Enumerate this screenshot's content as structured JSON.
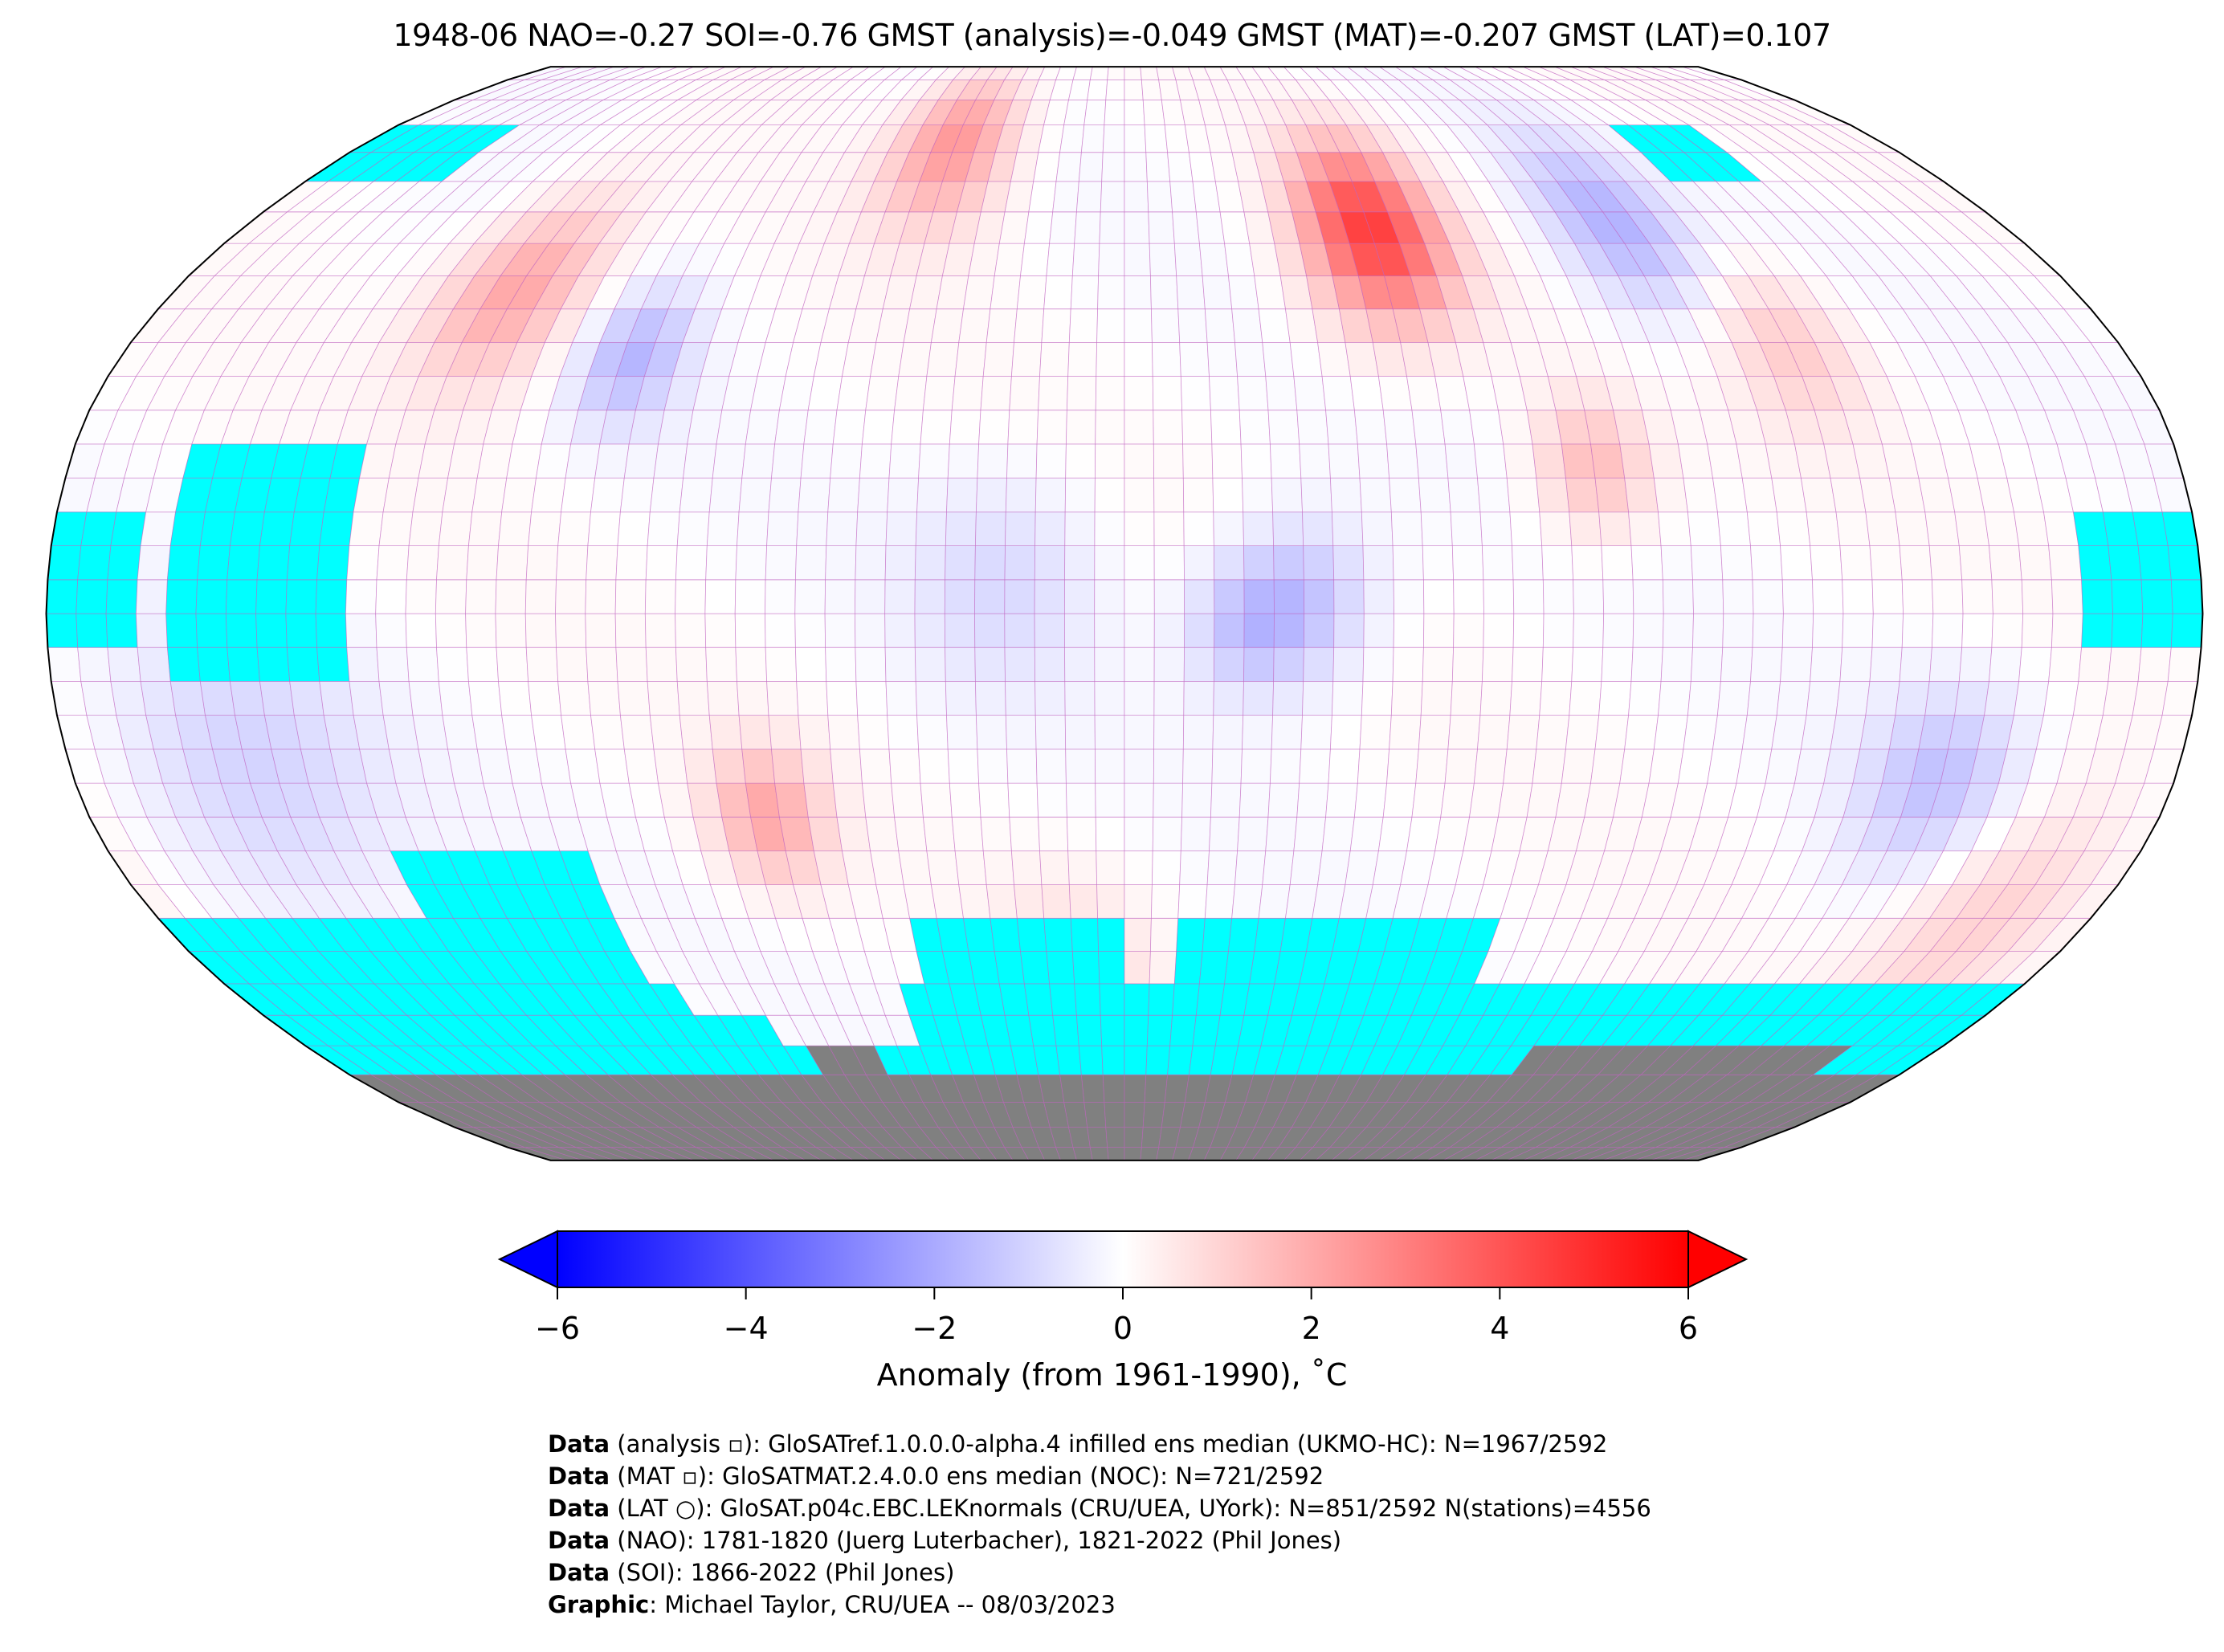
{
  "title": "1948-06 NAO=-0.27 SOI=-0.76 GMST (analysis)=-0.049 GMST (MAT)=-0.207 GMST (LAT)=0.107",
  "colors": {
    "missing": "#00ffff",
    "land_ice": "#808080",
    "grid": "#c060c0",
    "low": "#0000ff",
    "mid": "#ffffff",
    "high": "#ff0000"
  },
  "chart_data": {
    "type": "heatmap",
    "projection": "Robinson",
    "grid_resolution_deg": 5,
    "colorbar": {
      "min": -6,
      "max": 6,
      "extend": "both",
      "colormap": "bwr",
      "ticks": [
        -6,
        -4,
        -2,
        0,
        2,
        4,
        6
      ],
      "tick_labels": [
        "−6",
        "−4",
        "−2",
        "0",
        "2",
        "4",
        "6"
      ],
      "label": "Anomaly (from 1961-1990), ˚C"
    }
  },
  "footer": [
    {
      "bold": "Data",
      "text": " (analysis ▫): GloSATref.1.0.0.0-alpha.4 infilled ens median (UKMO-HC): N=1967/2592"
    },
    {
      "bold": "Data",
      "text": " (MAT ▫): GloSATMAT.2.4.0.0 ens median (NOC): N=721/2592"
    },
    {
      "bold": "Data",
      "text": " (LAT ○): GloSAT.p04c.EBC.LEKnormals (CRU/UEA, UYork): N=851/2592 N(stations)=4556"
    },
    {
      "bold": "Data",
      "text": " (NAO): 1781-1820 (Juerg Luterbacher), 1821-2022 (Phil Jones)"
    },
    {
      "bold": "Data",
      "text": " (SOI): 1866-2022 (Phil Jones)"
    },
    {
      "bold": "Graphic",
      "text": ": Michael Taylor, CRU/UEA -- 08/03/2023"
    }
  ]
}
